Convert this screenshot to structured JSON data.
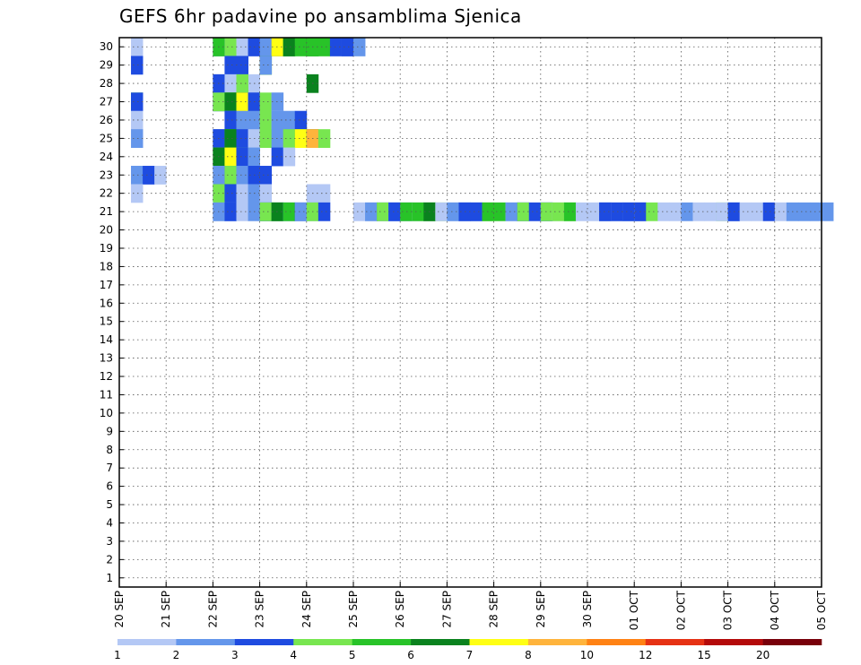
{
  "chart_data": {
    "type": "heatmap",
    "title": "GEFS 6hr padavine po ansamblima Sjenica",
    "y_labels": [
      "1",
      "2",
      "3",
      "4",
      "5",
      "6",
      "7",
      "8",
      "9",
      "10",
      "11",
      "12",
      "13",
      "14",
      "15",
      "16",
      "17",
      "18",
      "19",
      "20",
      "21",
      "22",
      "23",
      "24",
      "25",
      "26",
      "27",
      "28",
      "29",
      "30"
    ],
    "x_ticks": [
      "20 SEP",
      "21 SEP",
      "22 SEP",
      "23 SEP",
      "24 SEP",
      "25 SEP",
      "26 SEP",
      "27 SEP",
      "28 SEP",
      "29 SEP",
      "30 SEP",
      "01 OCT",
      "02 OCT",
      "03 OCT",
      "04 OCT",
      "05 OCT"
    ],
    "time_steps_per_day": 4,
    "grid": true,
    "legend": {
      "placement": "bottom",
      "levels": [
        "1",
        "2",
        "3",
        "4",
        "5",
        "6",
        "7",
        "8",
        "10",
        "12",
        "15",
        "20"
      ],
      "colors": [
        "#b4c8f5",
        "#6496eb",
        "#1e4be0",
        "#78e650",
        "#28c328",
        "#0a821e",
        "#ffff14",
        "#ffb43c",
        "#ff8214",
        "#e63214",
        "#b40a0a",
        "#78000a"
      ]
    },
    "cells": [
      [
        30,
        1,
        0
      ],
      [
        30,
        8,
        1
      ],
      [
        30,
        8,
        4
      ],
      [
        30,
        9,
        1
      ],
      [
        30,
        9,
        2
      ],
      [
        30,
        9,
        3
      ],
      [
        30,
        10,
        0
      ],
      [
        30,
        11,
        2
      ],
      [
        30,
        12,
        1
      ],
      [
        30,
        13,
        2
      ],
      [
        30,
        13,
        6
      ],
      [
        30,
        14,
        4
      ],
      [
        30,
        14,
        5
      ],
      [
        30,
        15,
        4
      ],
      [
        30,
        16,
        5
      ],
      [
        30,
        16,
        4
      ],
      [
        30,
        17,
        4
      ],
      [
        30,
        18,
        2
      ],
      [
        30,
        19,
        1
      ],
      [
        30,
        19,
        2
      ],
      [
        30,
        20,
        1
      ],
      [
        29,
        1,
        2
      ],
      [
        29,
        9,
        1
      ],
      [
        29,
        9,
        2
      ],
      [
        29,
        10,
        0
      ],
      [
        29,
        10,
        1
      ],
      [
        29,
        10,
        2
      ],
      [
        29,
        12,
        3
      ],
      [
        29,
        12,
        5
      ],
      [
        29,
        12,
        1
      ],
      [
        28,
        16,
        5
      ],
      [
        28,
        8,
        0
      ],
      [
        28,
        8,
        2
      ],
      [
        28,
        9,
        0
      ],
      [
        28,
        11,
        0
      ],
      [
        28,
        10,
        3
      ],
      [
        27,
        1,
        4
      ],
      [
        27,
        1,
        2
      ],
      [
        27,
        8,
        1
      ],
      [
        27,
        8,
        2
      ],
      [
        27,
        8,
        3
      ],
      [
        27,
        9,
        3
      ],
      [
        27,
        9,
        4
      ],
      [
        27,
        9,
        5
      ],
      [
        27,
        10,
        1
      ],
      [
        27,
        10,
        2
      ],
      [
        27,
        10,
        3
      ],
      [
        27,
        10,
        5
      ],
      [
        27,
        10,
        6
      ],
      [
        27,
        11,
        0
      ],
      [
        27,
        11,
        1
      ],
      [
        27,
        11,
        2
      ],
      [
        27,
        12,
        3
      ],
      [
        27,
        13,
        0
      ],
      [
        27,
        13,
        1
      ],
      [
        26,
        1,
        0
      ],
      [
        26,
        9,
        1
      ],
      [
        26,
        9,
        2
      ],
      [
        26,
        10,
        1
      ],
      [
        26,
        11,
        1
      ],
      [
        26,
        12,
        3
      ],
      [
        26,
        13,
        0
      ],
      [
        26,
        13,
        1
      ],
      [
        26,
        14,
        1
      ],
      [
        26,
        15,
        2
      ],
      [
        25,
        1,
        1
      ],
      [
        25,
        8,
        1
      ],
      [
        25,
        8,
        2
      ],
      [
        25,
        9,
        3
      ],
      [
        25,
        9,
        4
      ],
      [
        25,
        9,
        5
      ],
      [
        25,
        10,
        0
      ],
      [
        25,
        10,
        1
      ],
      [
        25,
        10,
        2
      ],
      [
        25,
        11,
        1
      ],
      [
        25,
        11,
        0
      ],
      [
        25,
        12,
        3
      ],
      [
        25,
        13,
        1
      ],
      [
        25,
        14,
        3
      ],
      [
        25,
        15,
        4
      ],
      [
        25,
        15,
        6
      ],
      [
        25,
        16,
        5
      ],
      [
        25,
        16,
        7
      ],
      [
        25,
        17,
        3
      ],
      [
        24,
        8,
        3
      ],
      [
        24,
        8,
        5
      ],
      [
        24,
        9,
        3
      ],
      [
        24,
        9,
        4
      ],
      [
        24,
        9,
        5
      ],
      [
        24,
        9,
        6
      ],
      [
        24,
        10,
        3
      ],
      [
        24,
        10,
        2
      ],
      [
        24,
        11,
        0
      ],
      [
        24,
        11,
        1
      ],
      [
        24,
        13,
        2
      ],
      [
        24,
        14,
        0
      ],
      [
        23,
        1,
        0
      ],
      [
        23,
        1,
        1
      ],
      [
        23,
        2,
        2
      ],
      [
        23,
        3,
        0
      ],
      [
        23,
        8,
        0
      ],
      [
        23,
        8,
        1
      ],
      [
        23,
        9,
        2
      ],
      [
        23,
        9,
        3
      ],
      [
        23,
        10,
        1
      ],
      [
        23,
        11,
        2
      ],
      [
        23,
        12,
        2
      ],
      [
        22,
        1,
        0
      ],
      [
        22,
        8,
        2
      ],
      [
        22,
        8,
        3
      ],
      [
        22,
        9,
        1
      ],
      [
        22,
        9,
        2
      ],
      [
        22,
        10,
        0
      ],
      [
        22,
        11,
        1
      ],
      [
        22,
        12,
        0
      ],
      [
        22,
        16,
        0
      ],
      [
        22,
        17,
        0
      ],
      [
        21,
        8,
        0
      ],
      [
        21,
        8,
        1
      ],
      [
        21,
        9,
        1
      ],
      [
        21,
        9,
        2
      ],
      [
        21,
        10,
        0
      ],
      [
        21,
        11,
        1
      ],
      [
        21,
        12,
        0
      ],
      [
        21,
        12,
        1
      ],
      [
        21,
        12,
        2
      ],
      [
        21,
        12,
        3
      ],
      [
        21,
        13,
        0
      ],
      [
        21,
        13,
        4
      ],
      [
        21,
        13,
        5
      ],
      [
        21,
        14,
        1
      ],
      [
        21,
        14,
        4
      ],
      [
        21,
        15,
        2
      ],
      [
        21,
        15,
        1
      ],
      [
        21,
        16,
        1
      ],
      [
        21,
        16,
        3
      ],
      [
        21,
        17,
        2
      ],
      [
        21,
        20,
        0
      ],
      [
        21,
        21,
        0
      ],
      [
        21,
        21,
        1
      ],
      [
        21,
        22,
        2
      ],
      [
        21,
        22,
        3
      ],
      [
        21,
        23,
        0
      ],
      [
        21,
        23,
        1
      ],
      [
        21,
        23,
        2
      ],
      [
        21,
        24,
        1
      ],
      [
        21,
        24,
        4
      ],
      [
        21,
        25,
        0
      ],
      [
        21,
        25,
        4
      ],
      [
        21,
        26,
        4
      ],
      [
        21,
        26,
        5
      ],
      [
        21,
        27,
        3
      ],
      [
        21,
        27,
        0
      ],
      [
        21,
        28,
        0
      ],
      [
        21,
        28,
        1
      ],
      [
        21,
        29,
        0
      ],
      [
        21,
        29,
        1
      ],
      [
        21,
        29,
        2
      ],
      [
        21,
        30,
        1
      ],
      [
        21,
        30,
        2
      ],
      [
        21,
        31,
        3
      ],
      [
        21,
        31,
        4
      ],
      [
        21,
        32,
        4
      ],
      [
        21,
        33,
        0
      ],
      [
        21,
        33,
        1
      ],
      [
        21,
        34,
        1
      ],
      [
        21,
        34,
        2
      ],
      [
        21,
        34,
        3
      ],
      [
        21,
        35,
        2
      ],
      [
        21,
        36,
        0
      ],
      [
        21,
        36,
        1
      ],
      [
        21,
        36,
        2
      ],
      [
        21,
        36,
        3
      ],
      [
        21,
        37,
        0
      ],
      [
        21,
        37,
        3
      ],
      [
        21,
        38,
        3
      ],
      [
        21,
        38,
        4
      ],
      [
        21,
        39,
        0
      ],
      [
        21,
        40,
        0
      ],
      [
        21,
        41,
        0
      ],
      [
        21,
        41,
        1
      ],
      [
        21,
        41,
        2
      ],
      [
        21,
        42,
        0
      ],
      [
        21,
        42,
        2
      ],
      [
        21,
        43,
        1
      ],
      [
        21,
        43,
        2
      ],
      [
        21,
        44,
        0
      ],
      [
        21,
        44,
        1
      ],
      [
        21,
        44,
        2
      ],
      [
        21,
        45,
        3
      ],
      [
        21,
        46,
        0
      ],
      [
        21,
        47,
        0
      ],
      [
        21,
        48,
        1
      ],
      [
        21,
        49,
        0
      ],
      [
        21,
        50,
        0
      ],
      [
        21,
        51,
        3
      ],
      [
        21,
        51,
        0
      ],
      [
        21,
        52,
        0
      ],
      [
        21,
        52,
        1
      ],
      [
        21,
        52,
        2
      ],
      [
        21,
        53,
        0
      ],
      [
        21,
        54,
        0
      ],
      [
        21,
        55,
        2
      ],
      [
        21,
        56,
        0
      ],
      [
        21,
        57,
        1
      ],
      [
        21,
        58,
        1
      ],
      [
        21,
        59,
        1
      ],
      [
        21,
        60,
        1
      ]
    ]
  }
}
